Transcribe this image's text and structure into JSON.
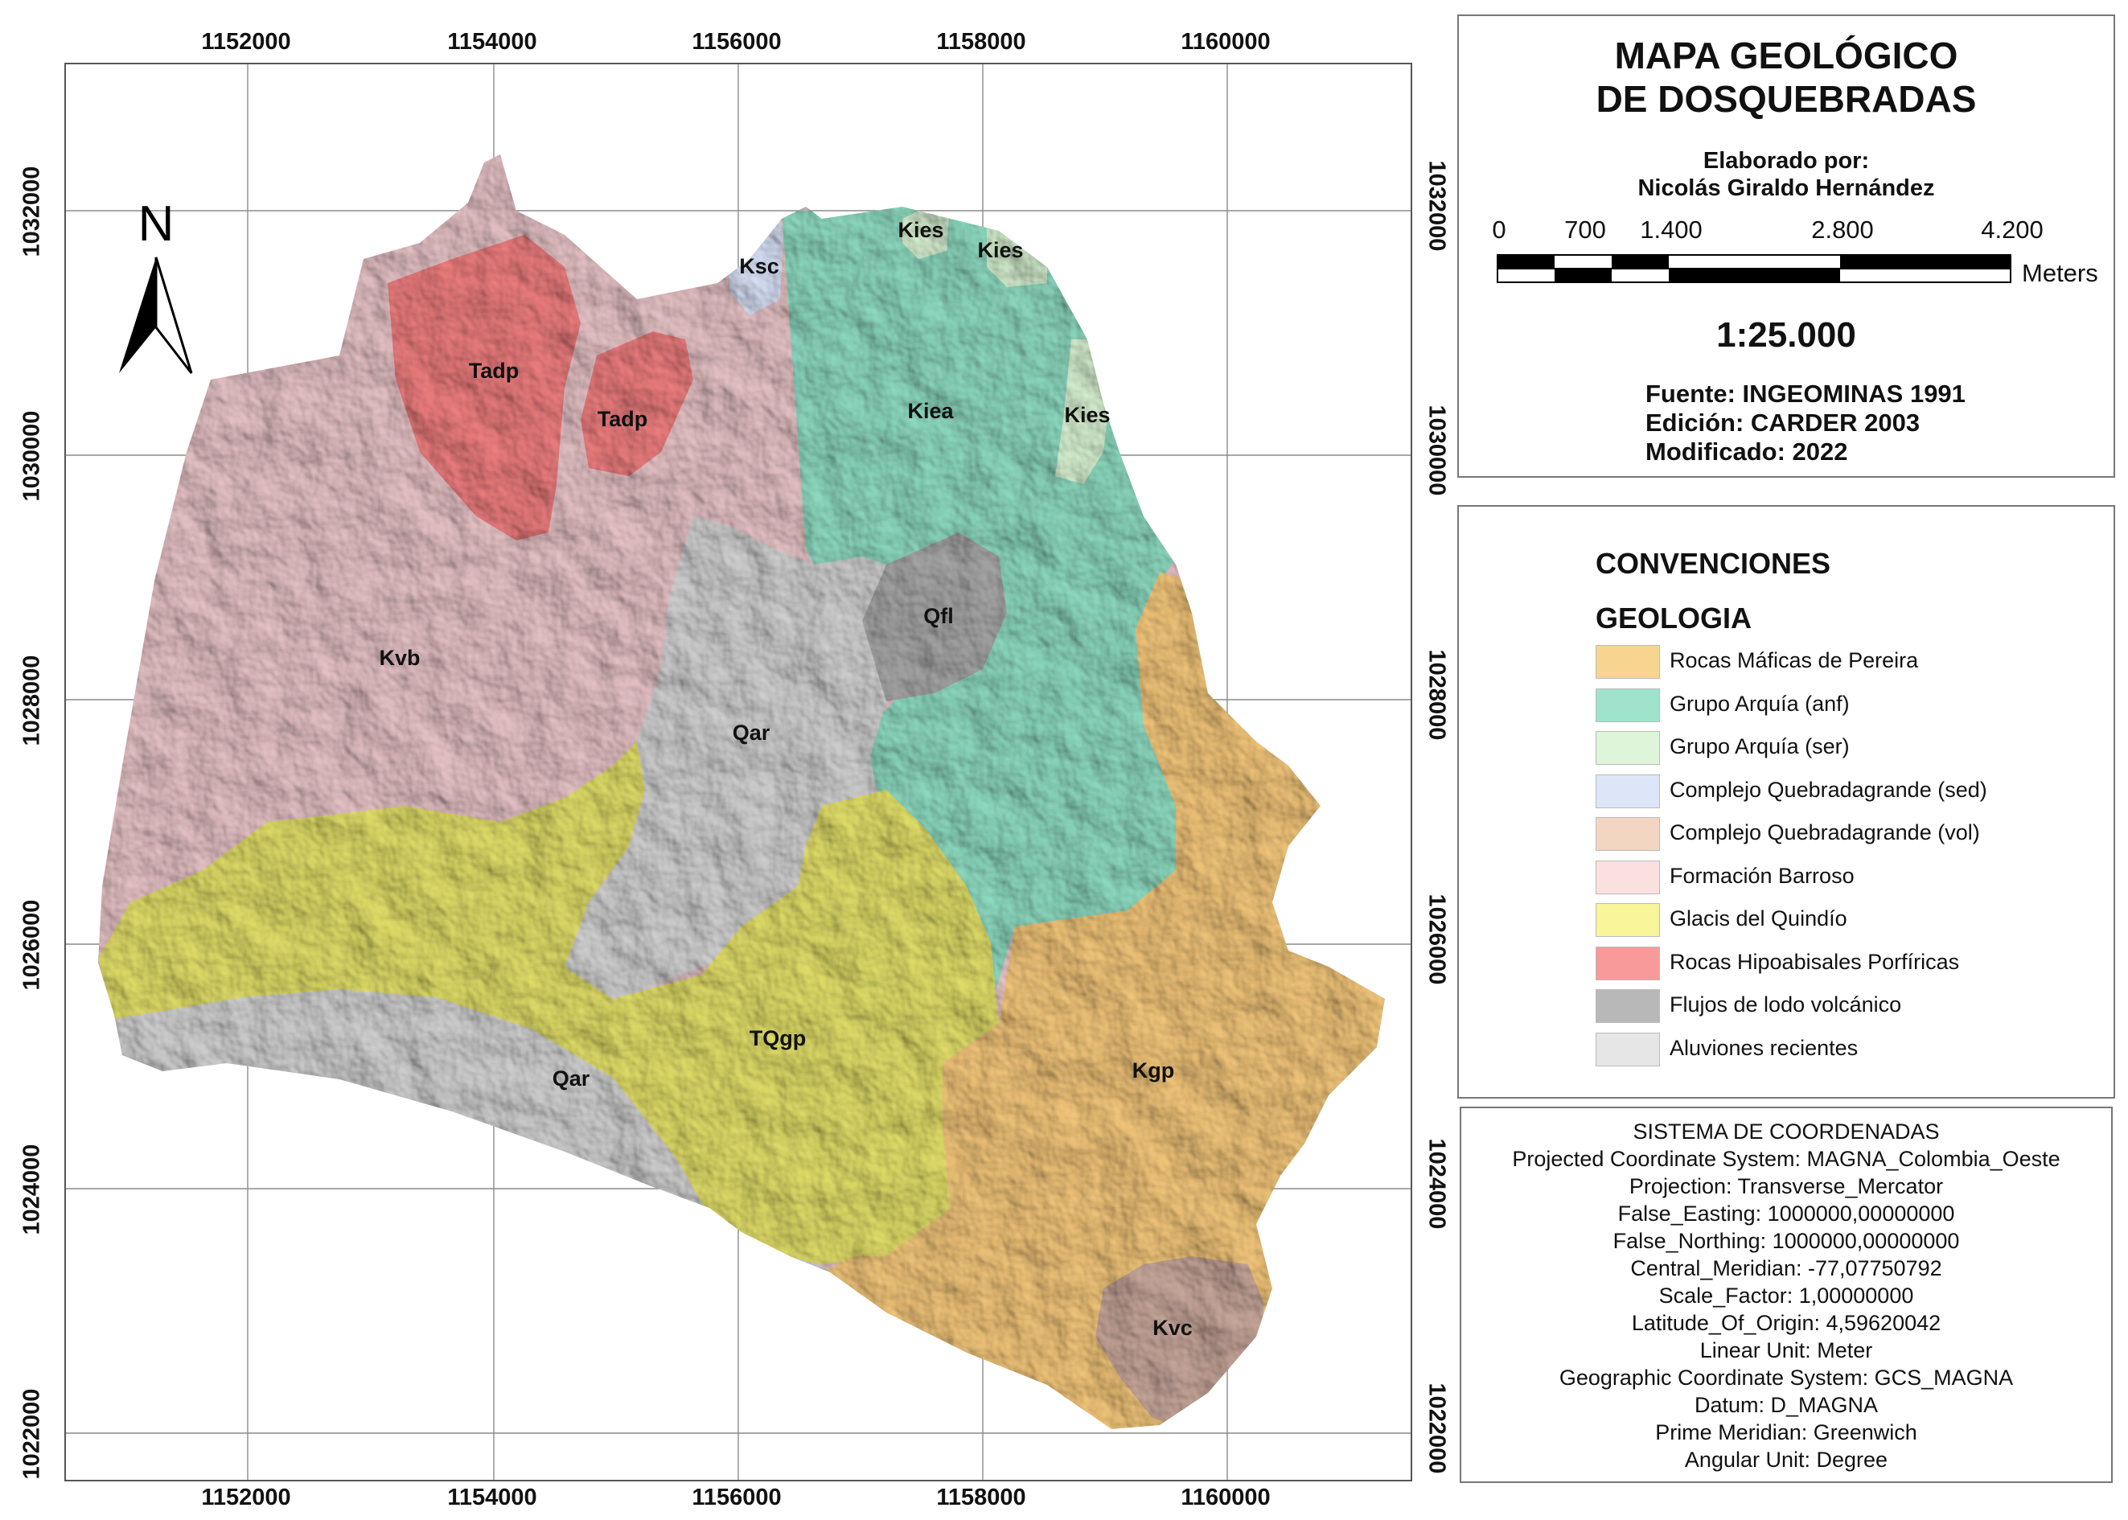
{
  "map": {
    "x_ticks": [
      "1152000",
      "1154000",
      "1156000",
      "1158000",
      "1160000"
    ],
    "y_ticks": [
      "1032000",
      "1030000",
      "1028000",
      "1026000",
      "1024000",
      "1022000"
    ],
    "north_label": "N",
    "unit_labels": {
      "kvb": "Kvb",
      "tadp1": "Tadp",
      "tadp2": "Tadp",
      "ksc": "Ksc",
      "kies1": "Kies",
      "kies2": "Kies",
      "kies3": "Kies",
      "kiea": "Kiea",
      "qfl": "Qfl",
      "qar1": "Qar",
      "qar2": "Qar",
      "tqgp": "TQgp",
      "kgp": "Kgp",
      "kvc": "Kvc"
    },
    "colors": {
      "rocas_maficas": "#f4c77b",
      "arquia_anf": "#8fdcc2",
      "arquia_ser": "#d8f2d2",
      "quebradagrande_sed": "#d9e2f7",
      "quebradagrande_vol": "#c9a89c",
      "barroso": "#e8c4c8",
      "glacis": "#e3e06a",
      "hipoabisales": "#f07f80",
      "flujos": "#a8a8a8",
      "aluviones": "#d2d2d2"
    }
  },
  "title_panel": {
    "title_line1": "MAPA GEOLÓGICO",
    "title_line2": "DE DOSQUEBRADAS",
    "author_label": "Elaborado por:",
    "author_name": "Nicolás Giraldo Hernández",
    "scale_bar_labels": [
      "0",
      "700",
      "1.400",
      "2.800",
      "4.200"
    ],
    "scale_bar_unit": "Meters",
    "scale_ratio": "1:25.000",
    "source": "Fuente: INGEOMINAS 1991",
    "edition": "Edición: CARDER 2003",
    "modified": "Modificado: 2022"
  },
  "legend": {
    "title": "CONVENCIONES",
    "subtitle": "GEOLOGIA",
    "items": [
      {
        "label": "Rocas Máficas de Pereira",
        "color": "#f7d48f"
      },
      {
        "label": "Grupo Arquía (anf)",
        "color": "#9fe3cc"
      },
      {
        "label": "Grupo Arquía (ser)",
        "color": "#def5da"
      },
      {
        "label": "Complejo Quebradagrande (sed)",
        "color": "#dde6f8"
      },
      {
        "label": "Complejo Quebradagrande (vol)",
        "color": "#f2d6c2"
      },
      {
        "label": "Formación Barroso",
        "color": "#fbe0e0"
      },
      {
        "label": "Glacis del Quindío",
        "color": "#f8f59a"
      },
      {
        "label": "Rocas Hipoabisales Porfíricas",
        "color": "#f89a9a"
      },
      {
        "label": "Flujos de lodo volcánico",
        "color": "#b8b8b8"
      },
      {
        "label": "Aluviones recientes",
        "color": "#e6e6e6"
      }
    ]
  },
  "coordinate_system": {
    "title": "SISTEMA DE COORDENADAS",
    "lines": [
      "Projected Coordinate System:   MAGNA_Colombia_Oeste",
      "Projection:   Transverse_Mercator",
      "False_Easting:   1000000,00000000",
      "False_Northing:   1000000,00000000",
      "Central_Meridian:   -77,07750792",
      "Scale_Factor:   1,00000000",
      "Latitude_Of_Origin:   4,59620042",
      "Linear Unit:    Meter",
      "Geographic Coordinate System:   GCS_MAGNA",
      "Datum:    D_MAGNA",
      "Prime Meridian:    Greenwich",
      "Angular Unit:    Degree"
    ]
  }
}
